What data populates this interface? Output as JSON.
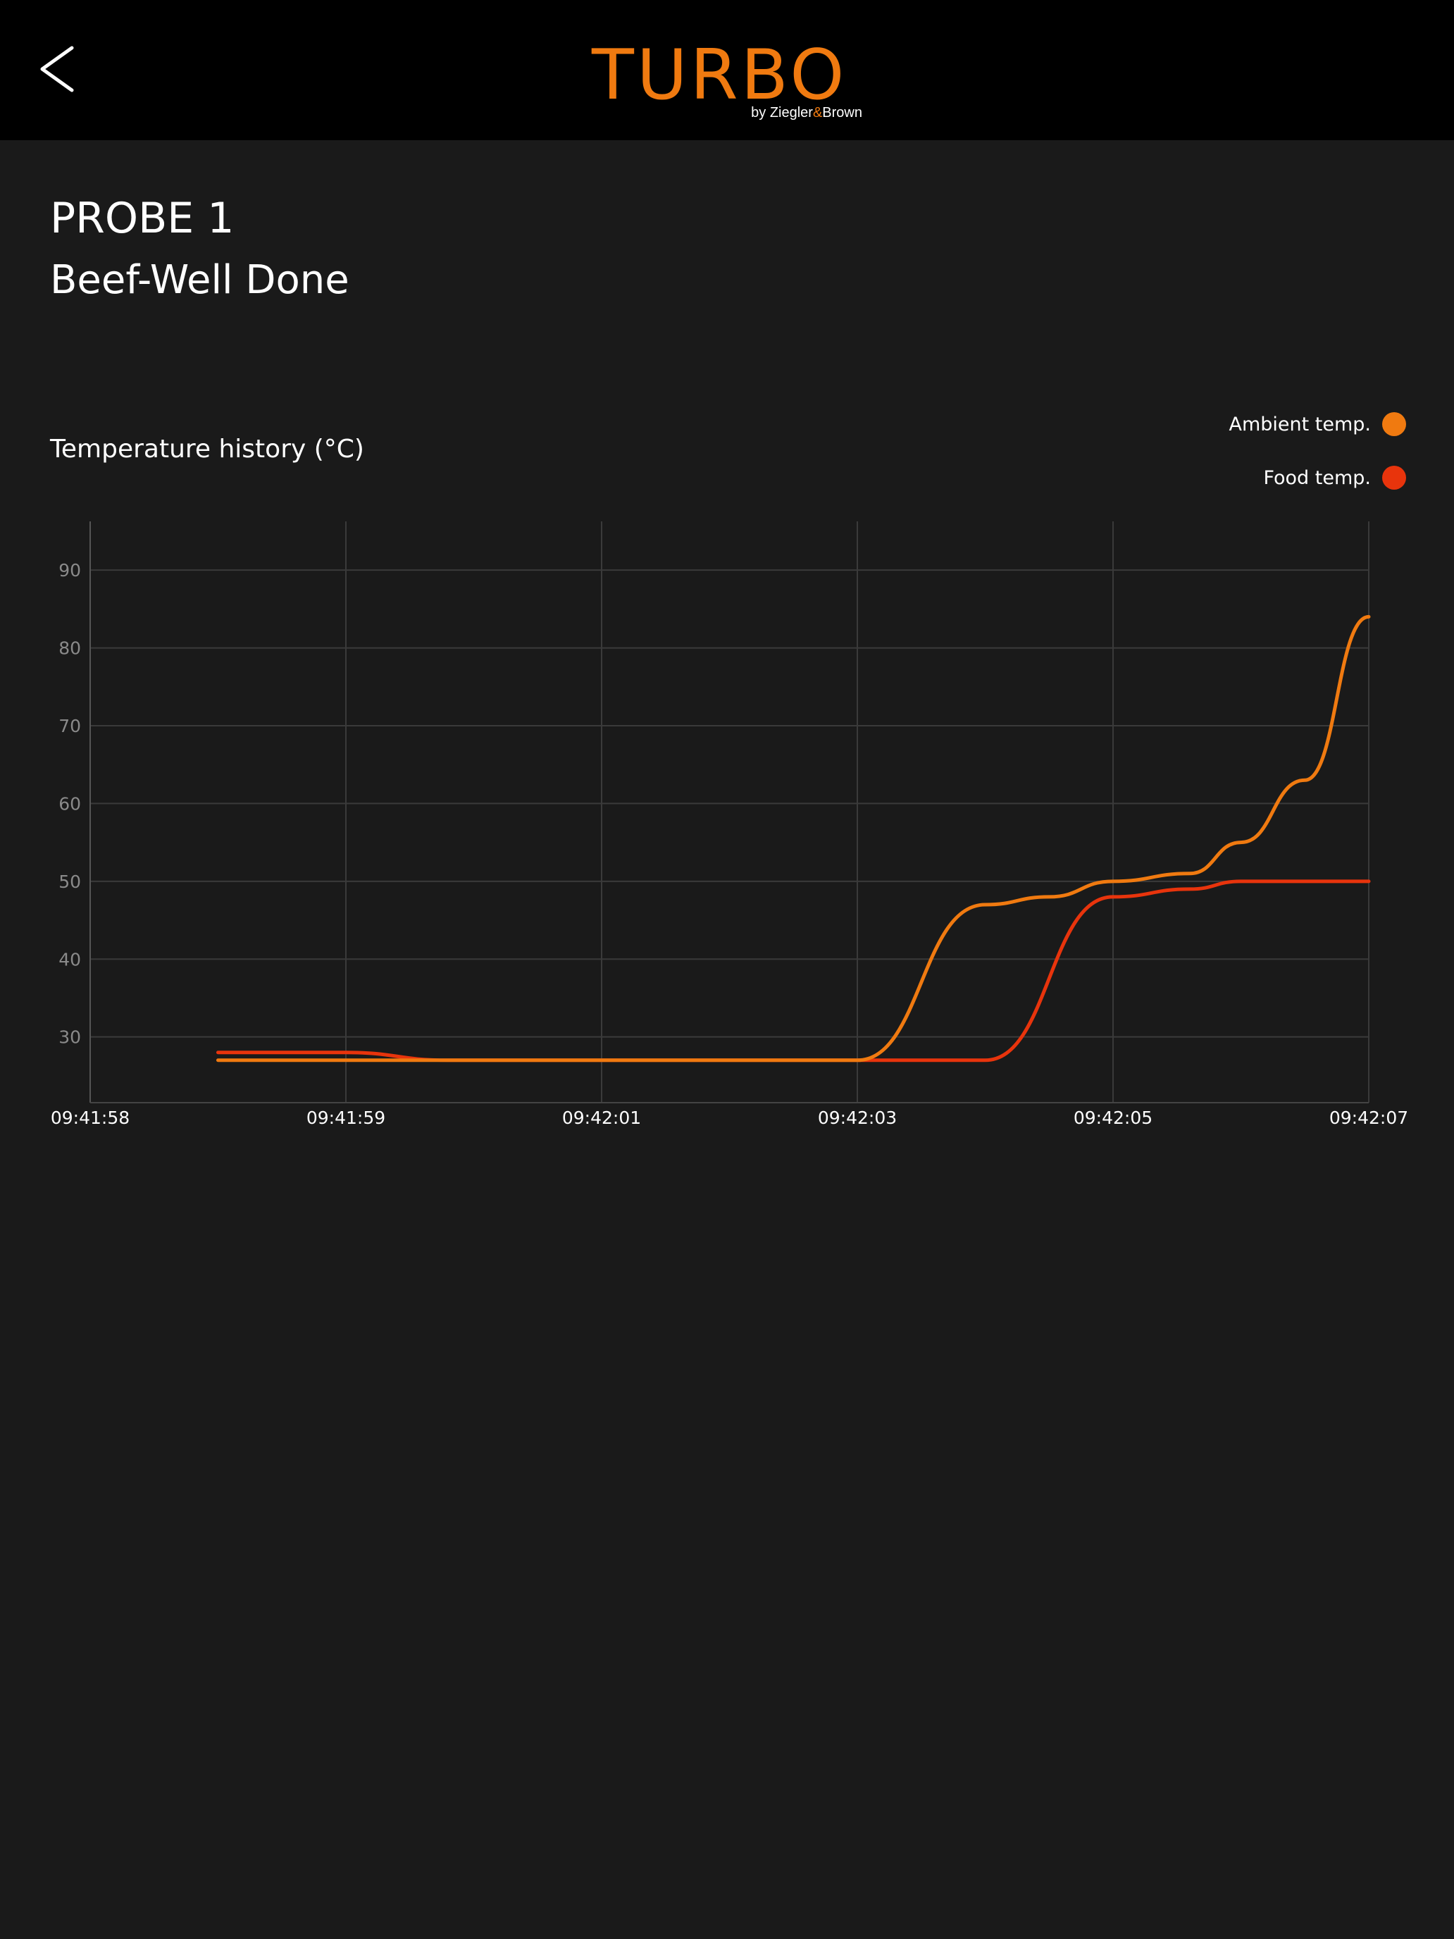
{
  "header": {
    "back_icon": "chevron-left-icon",
    "logo_text": "TURBO",
    "logo_sub_by": "by Ziegler",
    "logo_sub_amp": "&",
    "logo_sub_brown": "Brown",
    "logo_color": "#f07a10"
  },
  "probe": {
    "title": "PROBE 1",
    "preset": "Beef-Well Done"
  },
  "chart_section": {
    "title": "Temperature history (°C)"
  },
  "legend": [
    {
      "label": "Ambient temp.",
      "color": "#f07a10"
    },
    {
      "label": "Food temp.",
      "color": "#e8340c"
    }
  ],
  "chart_data": {
    "type": "line",
    "title": "Temperature history (°C)",
    "xlabel": "",
    "ylabel": "",
    "x_ticks": [
      "09:41:58",
      "09:41:59",
      "09:42:01",
      "09:42:03",
      "09:42:05",
      "09:42:07"
    ],
    "x_tick_seconds": [
      0,
      1,
      2,
      3,
      4,
      5
    ],
    "y_ticks": [
      30,
      40,
      50,
      60,
      70,
      80,
      90
    ],
    "ylim": [
      22,
      94
    ],
    "xlim": [
      0,
      5
    ],
    "grid": true,
    "legend_position": "top-right",
    "series": [
      {
        "name": "Ambient temp.",
        "color": "#f07a10",
        "x": [
          0.5,
          1.0,
          1.4,
          2.0,
          2.5,
          3.0,
          3.5,
          3.75,
          4.0,
          4.3,
          4.5,
          4.75,
          5.0
        ],
        "y": [
          27,
          27,
          27,
          27,
          27,
          27,
          47,
          48,
          50,
          51,
          55,
          63,
          84
        ]
      },
      {
        "name": "Food temp.",
        "color": "#e8340c",
        "x": [
          0.5,
          1.0,
          1.4,
          2.0,
          2.5,
          3.0,
          3.5,
          4.0,
          4.3,
          4.5,
          4.75,
          5.0
        ],
        "y": [
          28,
          28,
          27,
          27,
          27,
          27,
          27,
          48,
          49,
          50,
          50,
          50
        ]
      }
    ]
  }
}
